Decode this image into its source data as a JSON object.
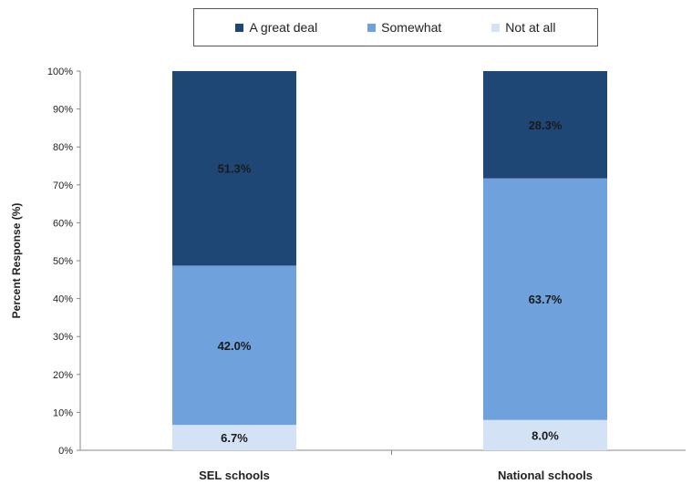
{
  "chart_data": {
    "type": "bar",
    "stacked": true,
    "title": "",
    "xlabel": "",
    "ylabel": "Percent Response (%)",
    "ylim": [
      0,
      100
    ],
    "yticks": [
      "0%",
      "10%",
      "20%",
      "30%",
      "40%",
      "50%",
      "60%",
      "70%",
      "80%",
      "90%",
      "100%"
    ],
    "categories": [
      "SEL schools",
      "National schools"
    ],
    "legend_position": "top",
    "grid": false,
    "series": [
      {
        "name": "Not at all",
        "color": "#d3e2f5",
        "values": [
          6.7,
          8.0
        ],
        "labels": [
          "6.7%",
          "8.0%"
        ]
      },
      {
        "name": "Somewhat",
        "color": "#6fa1dd",
        "values": [
          42.0,
          63.7
        ],
        "labels": [
          "42.0%",
          "63.7%"
        ]
      },
      {
        "name": "A great deal",
        "color": "#1f4776",
        "values": [
          51.3,
          28.3
        ],
        "labels": [
          "51.3%",
          "28.3%"
        ]
      }
    ],
    "legend_order": [
      "A great deal",
      "Somewhat",
      "Not at all"
    ]
  }
}
